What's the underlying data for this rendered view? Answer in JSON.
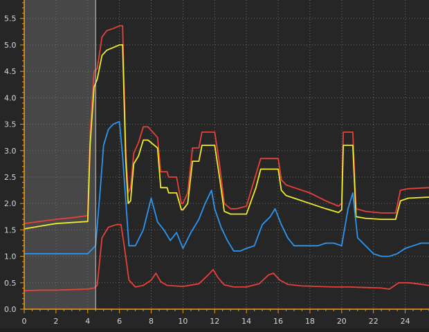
{
  "chart_data": {
    "type": "line",
    "title": "",
    "xlabel": "",
    "ylabel": "",
    "xlim": [
      0,
      25.5
    ],
    "ylim": [
      0,
      5.85
    ],
    "x_ticks": [
      0,
      2,
      4,
      6,
      8,
      10,
      12,
      14,
      16,
      18,
      20,
      22,
      24
    ],
    "y_ticks": [
      0.0,
      0.5,
      1.0,
      1.5,
      2.0,
      2.5,
      3.0,
      3.5,
      4.0,
      4.5,
      5.0,
      5.5
    ],
    "x_tick_labels": [
      "0",
      "2",
      "4",
      "6",
      "8",
      "10",
      "12",
      "14",
      "16",
      "18",
      "20",
      "22",
      "24"
    ],
    "y_tick_labels": [
      "0.0",
      "0.5",
      "1.0",
      "1.5",
      "2.0",
      "2.5",
      "3.0",
      "3.5",
      "4.0",
      "4.5",
      "5.0",
      "5.5"
    ],
    "grid": true,
    "highlight_range": [
      0,
      4.5
    ],
    "colors": {
      "background": "#262626",
      "highlight": "#474747",
      "grid": "#6e6e6e",
      "axis": "#f0a020",
      "red": "#e8413a",
      "yellow": "#f2ec2e",
      "blue": "#2e96f0",
      "red_low": "#e8413a",
      "marker": "#cfcfcf"
    },
    "series": [
      {
        "color": "#e8413a",
        "x": [
          0,
          1,
          2,
          3,
          4,
          4.15,
          4.4,
          4.6,
          4.9,
          5.2,
          5.6,
          6.0,
          6.2,
          6.4,
          6.55,
          6.7,
          6.9,
          7.2,
          7.5,
          7.8,
          8.4,
          8.6,
          9.0,
          9.1,
          9.6,
          9.9,
          10.0,
          10.3,
          10.6,
          11.0,
          11.2,
          11.5,
          12.0,
          12.3,
          12.6,
          13.0,
          13.4,
          14.0,
          14.6,
          14.9,
          15.2,
          15.5,
          16.0,
          16.2,
          16.5,
          17.0,
          18.0,
          19.0,
          19.8,
          20.0,
          20.1,
          20.7,
          20.9,
          21.5,
          22.5,
          23.4,
          23.7,
          24.2,
          25.5
        ],
        "values": [
          1.62,
          1.66,
          1.7,
          1.73,
          1.77,
          3.3,
          4.5,
          4.55,
          5.15,
          5.27,
          5.31,
          5.36,
          5.36,
          3.0,
          2.2,
          2.3,
          2.95,
          3.15,
          3.45,
          3.45,
          3.25,
          2.6,
          2.6,
          2.5,
          2.5,
          2.0,
          2.0,
          2.2,
          3.05,
          3.05,
          3.35,
          3.35,
          3.35,
          2.75,
          2.0,
          1.9,
          1.9,
          1.95,
          2.55,
          2.85,
          2.85,
          2.85,
          2.85,
          2.45,
          2.35,
          2.3,
          2.2,
          2.05,
          1.95,
          2.0,
          3.35,
          3.35,
          1.9,
          1.85,
          1.82,
          1.82,
          2.25,
          2.28,
          2.3
        ]
      },
      {
        "color": "#f2ec2e",
        "x": [
          0,
          1,
          2,
          3,
          4,
          4.15,
          4.4,
          4.6,
          4.9,
          5.2,
          5.6,
          6.0,
          6.2,
          6.4,
          6.55,
          6.7,
          6.9,
          7.2,
          7.5,
          7.8,
          8.4,
          8.6,
          9.0,
          9.1,
          9.6,
          9.9,
          10.0,
          10.3,
          10.6,
          11.0,
          11.2,
          11.5,
          12.0,
          12.3,
          12.6,
          13.0,
          13.4,
          14.0,
          14.6,
          14.9,
          15.2,
          15.5,
          16.0,
          16.2,
          16.5,
          17.0,
          18.0,
          19.0,
          19.8,
          20.0,
          20.1,
          20.7,
          20.9,
          21.5,
          22.5,
          23.4,
          23.7,
          24.2,
          25.5
        ],
        "values": [
          1.52,
          1.57,
          1.62,
          1.64,
          1.66,
          3.1,
          4.2,
          4.35,
          4.8,
          4.9,
          4.95,
          5.0,
          5.0,
          2.8,
          2.0,
          2.05,
          2.75,
          2.9,
          3.2,
          3.2,
          3.05,
          2.3,
          2.3,
          2.2,
          2.2,
          1.88,
          1.88,
          2.0,
          2.8,
          2.8,
          3.1,
          3.1,
          3.1,
          2.5,
          1.85,
          1.8,
          1.8,
          1.8,
          2.3,
          2.65,
          2.65,
          2.65,
          2.65,
          2.25,
          2.15,
          2.1,
          2.0,
          1.9,
          1.83,
          1.88,
          3.1,
          3.1,
          1.75,
          1.72,
          1.7,
          1.7,
          2.05,
          2.1,
          2.12
        ]
      },
      {
        "color": "#2e96f0",
        "x": [
          0,
          0.5,
          1,
          1.5,
          2,
          2.5,
          3,
          3.5,
          4,
          4.5,
          4.8,
          5.0,
          5.3,
          5.6,
          6.0,
          6.2,
          6.6,
          7.0,
          7.5,
          8.0,
          8.4,
          8.8,
          9.2,
          9.6,
          10.0,
          10.5,
          11.0,
          11.4,
          11.8,
          12.0,
          12.4,
          12.8,
          13.2,
          13.6,
          14.0,
          14.5,
          15.0,
          15.5,
          15.8,
          16.2,
          16.6,
          17.0,
          17.5,
          18.0,
          18.5,
          19.0,
          19.5,
          20.0,
          20.4,
          20.7,
          21.0,
          21.5,
          22.0,
          22.5,
          23.0,
          23.5,
          24.0,
          24.5,
          25.0,
          25.5
        ],
        "values": [
          1.05,
          1.05,
          1.05,
          1.05,
          1.05,
          1.05,
          1.05,
          1.05,
          1.05,
          1.2,
          2.3,
          3.1,
          3.4,
          3.5,
          3.55,
          2.9,
          1.2,
          1.2,
          1.5,
          2.1,
          1.65,
          1.5,
          1.3,
          1.45,
          1.15,
          1.45,
          1.7,
          2.0,
          2.25,
          1.9,
          1.55,
          1.3,
          1.1,
          1.1,
          1.15,
          1.2,
          1.6,
          1.75,
          1.9,
          1.6,
          1.35,
          1.2,
          1.2,
          1.2,
          1.2,
          1.25,
          1.25,
          1.2,
          1.9,
          2.2,
          1.35,
          1.2,
          1.05,
          1.0,
          1.0,
          1.05,
          1.15,
          1.2,
          1.25,
          1.25
        ]
      },
      {
        "color": "#e8413a",
        "x": [
          0,
          1,
          2,
          3,
          4,
          4.4,
          4.6,
          4.9,
          5.3,
          5.8,
          6.1,
          6.3,
          6.6,
          7.0,
          7.5,
          8.0,
          8.3,
          8.6,
          9.0,
          10.0,
          11.0,
          11.6,
          11.9,
          12.2,
          12.6,
          13.2,
          14.0,
          14.8,
          15.4,
          15.7,
          16.1,
          16.6,
          17.5,
          18.5,
          19.5,
          20.5,
          21.5,
          22.5,
          23.0,
          23.6,
          24.2,
          24.8,
          25.5
        ],
        "values": [
          0.35,
          0.36,
          0.36,
          0.37,
          0.38,
          0.4,
          0.45,
          1.35,
          1.55,
          1.6,
          1.6,
          1.2,
          0.55,
          0.42,
          0.45,
          0.55,
          0.68,
          0.52,
          0.45,
          0.43,
          0.48,
          0.65,
          0.75,
          0.6,
          0.46,
          0.42,
          0.42,
          0.48,
          0.65,
          0.68,
          0.55,
          0.47,
          0.44,
          0.43,
          0.42,
          0.42,
          0.41,
          0.4,
          0.38,
          0.5,
          0.5,
          0.48,
          0.45
        ]
      }
    ]
  }
}
